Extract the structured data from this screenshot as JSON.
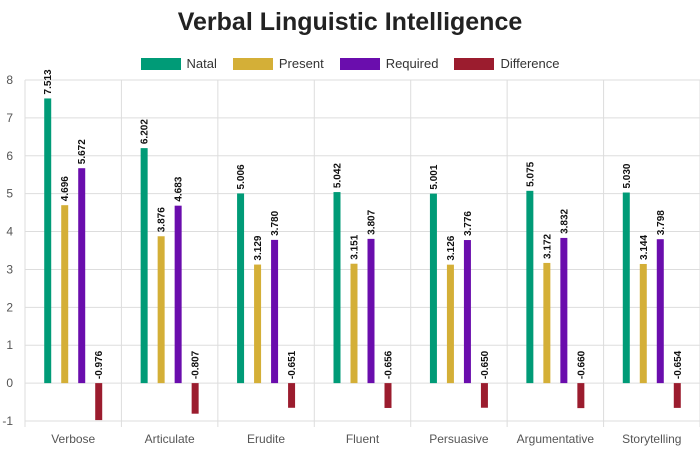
{
  "chart_data": {
    "type": "bar",
    "title": "Verbal Linguistic Intelligence",
    "categories": [
      "Verbose",
      "Articulate",
      "Erudite",
      "Fluent",
      "Persuasive",
      "Argumentative",
      "Storytelling"
    ],
    "series": [
      {
        "name": "Natal",
        "color": "#009b77",
        "values": [
          7.513,
          6.202,
          5.006,
          5.042,
          5.001,
          5.075,
          5.03
        ],
        "labels": [
          "7.513",
          "6.202",
          "5.006",
          "5.042",
          "5.001",
          "5.075",
          "5.030"
        ]
      },
      {
        "name": "Present",
        "color": "#d4af37",
        "values": [
          4.696,
          3.876,
          3.129,
          3.151,
          3.126,
          3.172,
          3.144
        ],
        "labels": [
          "4.696",
          "3.876",
          "3.129",
          "3.151",
          "3.126",
          "3.172",
          "3.144"
        ]
      },
      {
        "name": "Required",
        "color": "#6a0dad",
        "values": [
          5.672,
          4.683,
          3.78,
          3.807,
          3.776,
          3.832,
          3.798
        ],
        "labels": [
          "5.672",
          "4.683",
          "3.780",
          "3.807",
          "3.776",
          "3.832",
          "3.798"
        ]
      },
      {
        "name": "Difference",
        "color": "#9b1c2e",
        "values": [
          -0.976,
          -0.807,
          -0.651,
          -0.656,
          -0.65,
          -0.66,
          -0.654
        ],
        "labels": [
          "-0.976",
          "-0.807",
          "-0.651",
          "-0.656",
          "-0.650",
          "-0.660",
          "-0.654"
        ]
      }
    ],
    "yticks": [
      -1,
      0,
      1,
      2,
      3,
      4,
      5,
      6,
      7,
      8
    ],
    "ylim": [
      -1,
      8
    ],
    "grid": true,
    "legend_position": "top"
  }
}
